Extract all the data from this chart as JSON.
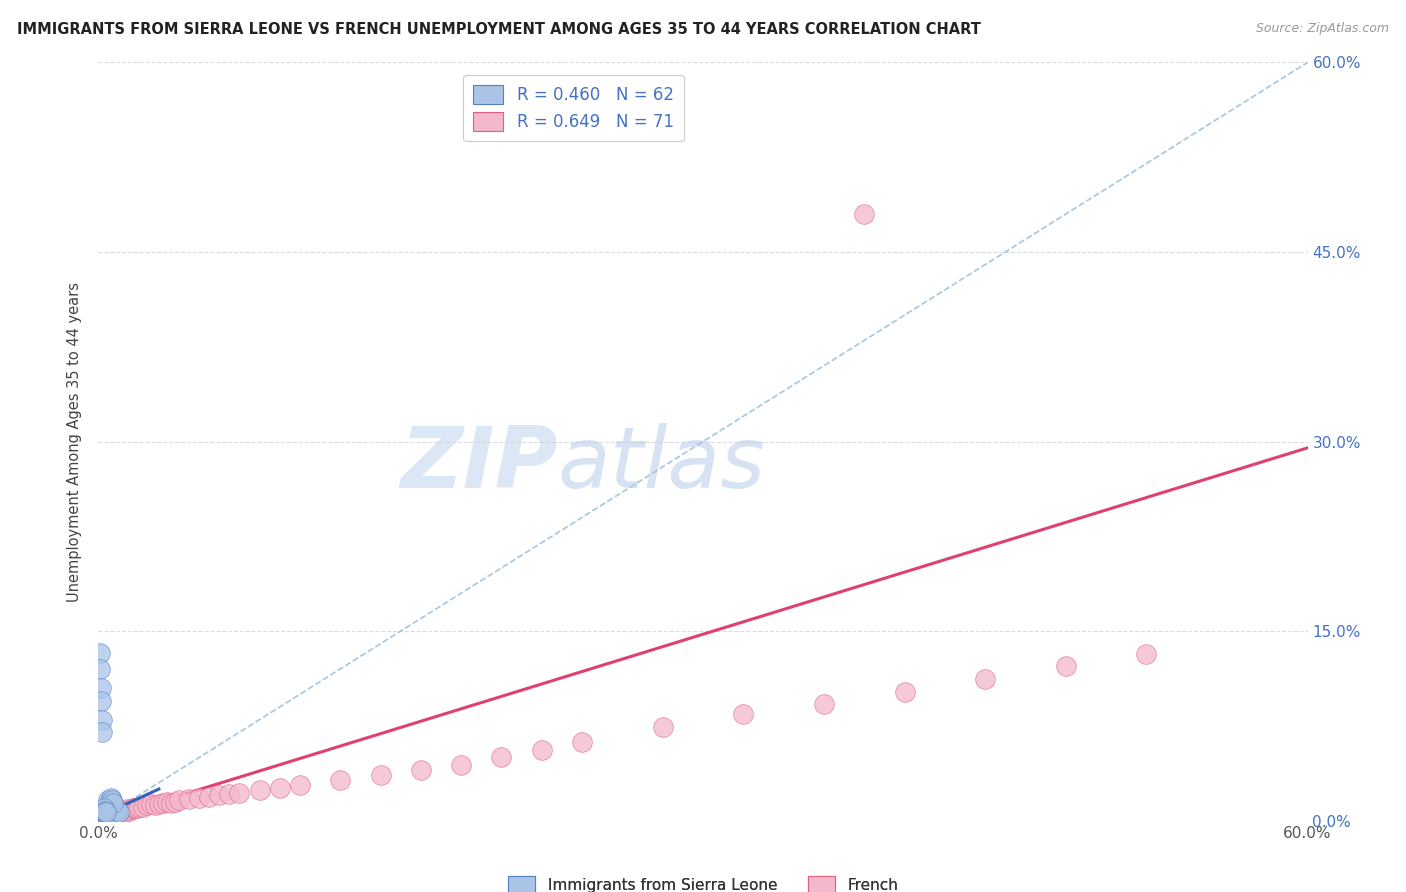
{
  "title": "IMMIGRANTS FROM SIERRA LEONE VS FRENCH UNEMPLOYMENT AMONG AGES 35 TO 44 YEARS CORRELATION CHART",
  "source": "Source: ZipAtlas.com",
  "ylabel": "Unemployment Among Ages 35 to 44 years",
  "x_min": 0.0,
  "x_max": 0.6,
  "y_min": 0.0,
  "y_max": 0.6,
  "legend_label_blue": "Immigrants from Sierra Leone",
  "legend_label_pink": "French",
  "r_blue": "0.460",
  "n_blue": "62",
  "r_pink": "0.649",
  "n_pink": "71",
  "color_blue_fill": "#aac4e8",
  "color_blue_edge": "#5580c0",
  "color_pink_fill": "#f4b8cc",
  "color_pink_edge": "#e06080",
  "color_blue_line": "#3060c0",
  "color_pink_line": "#e04070",
  "color_diagonal": "#90b8d8",
  "color_grid": "#d8d8d8",
  "color_right_axis": "#4472c4",
  "watermark_zip_color": "#c8daf0",
  "watermark_atlas_color": "#b8cce8",
  "background_color": "#ffffff",
  "blue_x": [
    0.0008,
    0.0008,
    0.001,
    0.0012,
    0.0012,
    0.0014,
    0.0015,
    0.0016,
    0.0018,
    0.002,
    0.002,
    0.0022,
    0.0023,
    0.0025,
    0.0025,
    0.0026,
    0.0028,
    0.003,
    0.003,
    0.0032,
    0.0034,
    0.0035,
    0.0036,
    0.0038,
    0.004,
    0.0042,
    0.0044,
    0.0046,
    0.0048,
    0.005,
    0.0052,
    0.0054,
    0.0056,
    0.0058,
    0.006,
    0.0062,
    0.0064,
    0.0066,
    0.0068,
    0.007,
    0.0008,
    0.001,
    0.0012,
    0.0014,
    0.0016,
    0.0018,
    0.005,
    0.0055,
    0.006,
    0.0065,
    0.007,
    0.0075,
    0.008,
    0.0085,
    0.009,
    0.01,
    0.006,
    0.0065,
    0.007,
    0.003,
    0.0035,
    0.004
  ],
  "blue_y": [
    0.004,
    0.006,
    0.005,
    0.004,
    0.007,
    0.005,
    0.006,
    0.004,
    0.005,
    0.004,
    0.006,
    0.005,
    0.004,
    0.005,
    0.006,
    0.004,
    0.005,
    0.004,
    0.006,
    0.005,
    0.004,
    0.005,
    0.006,
    0.004,
    0.005,
    0.004,
    0.005,
    0.006,
    0.004,
    0.005,
    0.004,
    0.005,
    0.006,
    0.004,
    0.005,
    0.004,
    0.005,
    0.006,
    0.004,
    0.005,
    0.133,
    0.12,
    0.105,
    0.095,
    0.08,
    0.07,
    0.016,
    0.015,
    0.014,
    0.013,
    0.012,
    0.011,
    0.01,
    0.009,
    0.008,
    0.007,
    0.018,
    0.016,
    0.014,
    0.01,
    0.008,
    0.007
  ],
  "pink_x": [
    0.001,
    0.0012,
    0.0015,
    0.0018,
    0.002,
    0.0022,
    0.0025,
    0.0028,
    0.003,
    0.0035,
    0.004,
    0.0045,
    0.005,
    0.0055,
    0.006,
    0.0065,
    0.007,
    0.0075,
    0.008,
    0.0085,
    0.009,
    0.0095,
    0.01,
    0.011,
    0.012,
    0.013,
    0.014,
    0.015,
    0.016,
    0.017,
    0.018,
    0.019,
    0.02,
    0.022,
    0.024,
    0.026,
    0.028,
    0.03,
    0.032,
    0.034,
    0.036,
    0.038,
    0.04,
    0.045,
    0.05,
    0.055,
    0.06,
    0.065,
    0.07,
    0.08,
    0.09,
    0.1,
    0.12,
    0.14,
    0.16,
    0.18,
    0.2,
    0.22,
    0.24,
    0.28,
    0.32,
    0.36,
    0.4,
    0.44,
    0.48,
    0.52,
    0.001,
    0.0015,
    0.002,
    0.0025,
    0.38
  ],
  "pink_y": [
    0.004,
    0.005,
    0.006,
    0.005,
    0.004,
    0.006,
    0.005,
    0.006,
    0.004,
    0.005,
    0.006,
    0.004,
    0.005,
    0.006,
    0.004,
    0.005,
    0.006,
    0.004,
    0.005,
    0.006,
    0.007,
    0.006,
    0.008,
    0.007,
    0.008,
    0.007,
    0.009,
    0.008,
    0.009,
    0.01,
    0.01,
    0.01,
    0.011,
    0.011,
    0.012,
    0.013,
    0.012,
    0.013,
    0.014,
    0.015,
    0.014,
    0.015,
    0.016,
    0.017,
    0.018,
    0.019,
    0.02,
    0.021,
    0.022,
    0.024,
    0.026,
    0.028,
    0.032,
    0.036,
    0.04,
    0.044,
    0.05,
    0.056,
    0.062,
    0.074,
    0.084,
    0.092,
    0.102,
    0.112,
    0.122,
    0.132,
    0.003,
    0.004,
    0.003,
    0.004,
    0.48
  ],
  "trendline_blue_x0": 0.0,
  "trendline_blue_x1": 0.03,
  "trendline_blue_y0": 0.003,
  "trendline_blue_y1": 0.025,
  "trendline_pink_x0": 0.0,
  "trendline_pink_x1": 0.6,
  "trendline_pink_y0": 0.0,
  "trendline_pink_y1": 0.295
}
